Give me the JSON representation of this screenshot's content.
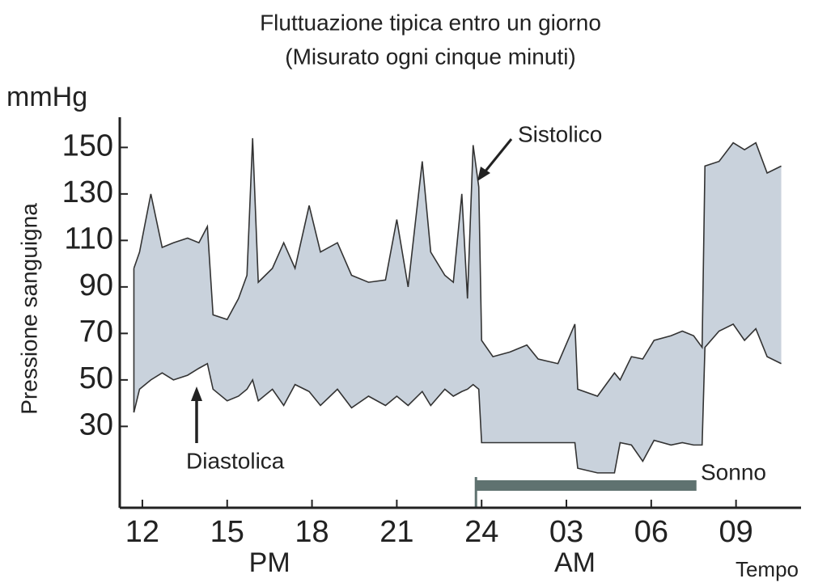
{
  "chart_data": {
    "type": "range-line",
    "title": "Fluttuazione tipica entro un giorno",
    "subtitle": "(Misurato ogni cinque minuti)",
    "y_unit": "mmHg",
    "y_label": "Pressione sanguigna",
    "x_label": "Tempo",
    "x_groups": [
      {
        "label": "PM",
        "x": 16.5
      },
      {
        "label": "AM",
        "x": 27.3
      }
    ],
    "x": [
      11.7,
      11.9,
      12.3,
      12.7,
      13.1,
      13.6,
      14.0,
      14.3,
      14.5,
      15.0,
      15.4,
      15.7,
      15.9,
      16.1,
      16.6,
      17.0,
      17.4,
      17.9,
      18.3,
      18.9,
      19.4,
      20.0,
      20.6,
      21.0,
      21.4,
      21.9,
      22.2,
      22.7,
      23.0,
      23.3,
      23.5,
      23.7,
      23.9,
      24.0,
      24.4,
      25.0,
      25.6,
      26.0,
      26.7,
      27.3,
      27.4,
      28.1,
      28.7,
      28.9,
      29.3,
      29.7,
      30.1,
      30.7,
      31.1,
      31.5,
      31.8,
      31.9,
      32.4,
      32.9,
      33.3,
      33.7,
      34.1,
      34.6
    ],
    "series": [
      {
        "name": "Sistolico",
        "color": "#333333",
        "values": [
          98,
          105,
          130,
          107,
          109,
          111,
          109,
          116,
          78,
          76,
          85,
          95,
          154,
          92,
          98,
          109,
          98,
          125,
          105,
          109,
          95,
          92,
          93,
          119,
          90,
          144,
          105,
          95,
          92,
          130,
          85,
          151,
          133,
          67,
          60,
          62,
          65,
          59,
          57,
          74,
          46,
          43,
          53,
          50,
          60,
          59,
          67,
          69,
          71,
          69,
          64,
          142,
          144,
          152,
          149,
          152,
          139,
          142
        ]
      },
      {
        "name": "Diastolica",
        "color": "#333333",
        "values": [
          36,
          46,
          50,
          53,
          50,
          52,
          55,
          57,
          46,
          41,
          43,
          46,
          50,
          41,
          46,
          39,
          48,
          45,
          39,
          46,
          38,
          43,
          39,
          43,
          39,
          45,
          39,
          46,
          43,
          45,
          46,
          48,
          46,
          23,
          23,
          23,
          23,
          23,
          23,
          23,
          12,
          10,
          10,
          23,
          22,
          15,
          24,
          22,
          23,
          22,
          22,
          64,
          71,
          74,
          67,
          72,
          60,
          57
        ]
      }
    ],
    "fill_color": "#c9d2dc",
    "sleep": {
      "label": "Sonno",
      "x": [
        23.8,
        31.6
      ],
      "color": "#5f7270"
    },
    "xlim": [
      11.2,
      35.3
    ],
    "xticks": [
      12,
      15,
      18,
      21,
      24,
      {
        "value": 27,
        "label": "03"
      },
      {
        "value": 30,
        "label": "06"
      },
      {
        "value": 33,
        "label": "09"
      }
    ],
    "ylim": [
      -5,
      160
    ],
    "yticks": [
      30,
      50,
      70,
      90,
      110,
      130,
      150
    ]
  }
}
